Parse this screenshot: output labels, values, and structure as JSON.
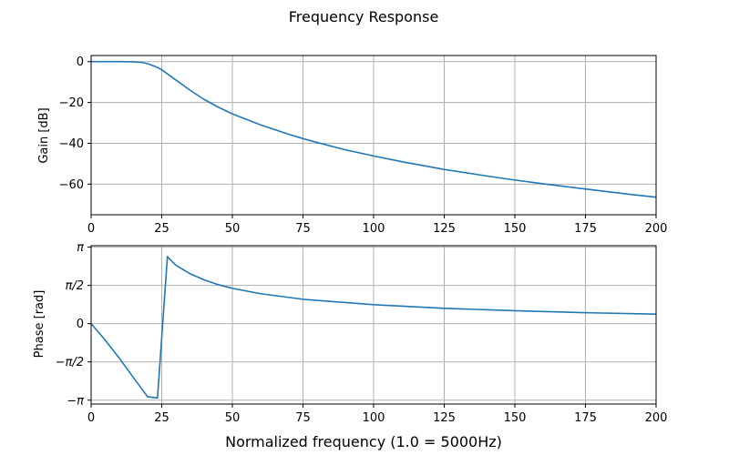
{
  "figure": {
    "title": "Frequency Response",
    "xlabel": "Normalized frequency (1.0 = 5000Hz)"
  },
  "chart_data": [
    {
      "type": "line",
      "name": "gain-plot",
      "ylabel": "Gain [dB]",
      "xlim": [
        0,
        200
      ],
      "ylim": [
        -75,
        3
      ],
      "grid": true,
      "x_ticks": [
        0,
        25,
        50,
        75,
        100,
        125,
        150,
        175,
        200
      ],
      "x_tick_labels": [
        "0",
        "25",
        "50",
        "75",
        "100",
        "125",
        "150",
        "175",
        "200"
      ],
      "y_ticks": [
        0,
        -20,
        -40,
        -60
      ],
      "y_tick_labels": [
        "0",
        "−20",
        "−40",
        "−60"
      ],
      "series": [
        {
          "color": "#1f77b4",
          "x": [
            0,
            5,
            10,
            15,
            18,
            20,
            22,
            24,
            25,
            27,
            30,
            35,
            40,
            45,
            50,
            60,
            70,
            75,
            80,
            90,
            100,
            110,
            125,
            140,
            150,
            160,
            175,
            190,
            200
          ],
          "y": [
            0,
            0,
            0,
            -0.1,
            -0.4,
            -1,
            -2,
            -3.2,
            -4,
            -6,
            -9,
            -14,
            -18.5,
            -22.3,
            -25.6,
            -31,
            -35.6,
            -37.7,
            -39.6,
            -43.2,
            -46.2,
            -49,
            -52.8,
            -56,
            -58,
            -59.8,
            -62.4,
            -64.9,
            -66.4
          ]
        }
      ]
    },
    {
      "type": "line",
      "name": "phase-plot",
      "ylabel": "Phase [rad]",
      "xlim": [
        0,
        200
      ],
      "ylim": [
        -3.3,
        3.2
      ],
      "grid": true,
      "x_ticks": [
        0,
        25,
        50,
        75,
        100,
        125,
        150,
        175,
        200
      ],
      "x_tick_labels": [
        "0",
        "25",
        "50",
        "75",
        "100",
        "125",
        "150",
        "175",
        "200"
      ],
      "y_ticks": [
        3.1416,
        1.5708,
        0,
        -1.5708,
        -3.1416
      ],
      "y_tick_labels": [
        "π",
        "π/2",
        "0",
        "−π/2",
        "−π"
      ],
      "series": [
        {
          "color": "#1f77b4",
          "x": [
            0,
            5,
            10,
            15,
            20,
            23.5,
            27,
            30,
            35,
            40,
            45,
            50,
            60,
            75,
            100,
            125,
            150,
            175,
            200
          ],
          "y": [
            0,
            -0.68,
            -1.42,
            -2.22,
            -3.0,
            -3.05,
            2.75,
            2.4,
            2.05,
            1.8,
            1.6,
            1.45,
            1.23,
            1.0,
            0.78,
            0.63,
            0.53,
            0.45,
            0.39
          ]
        }
      ]
    }
  ]
}
